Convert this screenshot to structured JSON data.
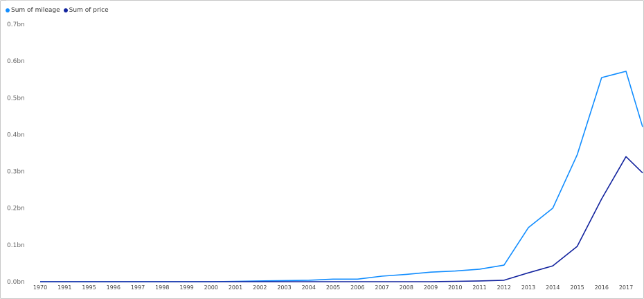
{
  "legend": {
    "items": [
      {
        "label": "Sum of mileage",
        "color": "#118dff"
      },
      {
        "label": "Sum of price",
        "color": "#12239e"
      }
    ]
  },
  "chart_data": {
    "type": "line",
    "x": [
      "1970",
      "1991",
      "1995",
      "1996",
      "1997",
      "1998",
      "1999",
      "2000",
      "2001",
      "2002",
      "2003",
      "2004",
      "2005",
      "2006",
      "2007",
      "2008",
      "2009",
      "2010",
      "2011",
      "2012",
      "2013",
      "2014",
      "2015",
      "2016",
      "2017"
    ],
    "y_ticks": [
      "0.0bn",
      "0.1bn",
      "0.2bn",
      "0.3bn",
      "0.4bn",
      "0.5bn",
      "0.6bn",
      "0.7bn"
    ],
    "ylim": [
      0,
      0.7
    ],
    "y_unit": "bn",
    "grid": false,
    "legend_position": "top-left",
    "series": [
      {
        "name": "Sum of mileage",
        "color": "#118dff",
        "values": [
          0,
          0,
          0,
          0,
          0,
          0,
          0,
          0,
          0.001,
          0.002,
          0.003,
          0.004,
          0.007,
          0.007,
          0.015,
          0.02,
          0.026,
          0.029,
          0.034,
          0.045,
          0.147,
          0.2,
          0.345,
          0.555,
          0.572
        ],
        "trailing_value": 0.35
      },
      {
        "name": "Sum of price",
        "color": "#12239e",
        "values": [
          0,
          0,
          0,
          0,
          0,
          0,
          0,
          0,
          0,
          0,
          0,
          0,
          0,
          0,
          0,
          0,
          0,
          0.001,
          0.002,
          0.004,
          0.024,
          0.043,
          0.096,
          0.225,
          0.34
        ],
        "trailing_value": 0.275
      }
    ]
  }
}
